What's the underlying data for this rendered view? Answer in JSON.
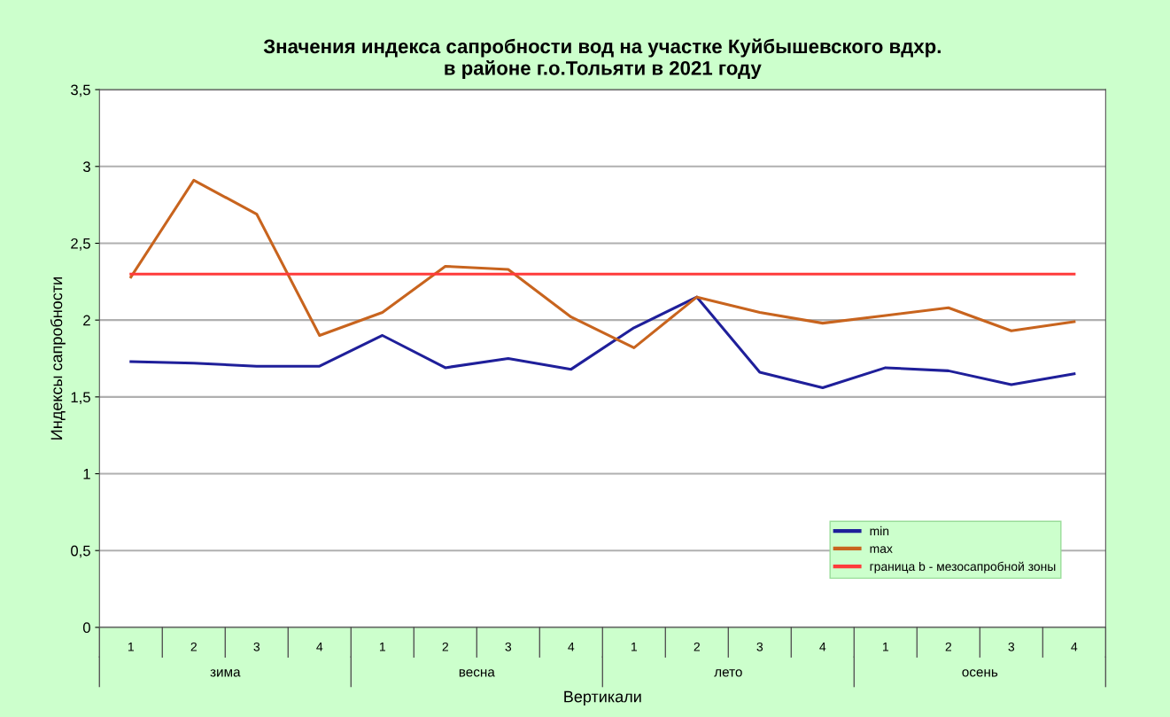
{
  "chart_data": {
    "type": "line",
    "title": "Значения индекса сапробности вод на участке Куйбышевского вдхр.\nв районе г.о.Тольяти в 2021 году",
    "xlabel": "Вертикали",
    "ylabel": "Индексы сапробности",
    "categories": [
      "1",
      "2",
      "3",
      "4",
      "1",
      "2",
      "3",
      "4",
      "1",
      "2",
      "3",
      "4",
      "1",
      "2",
      "3",
      "4"
    ],
    "annotations": [
      "зима",
      "весна",
      "лето",
      "осень"
    ],
    "series": [
      {
        "name": "min",
        "color": "#1f1f9a",
        "values": [
          1.73,
          1.72,
          1.7,
          1.7,
          1.9,
          1.69,
          1.75,
          1.68,
          1.95,
          2.15,
          1.66,
          1.56,
          1.69,
          1.67,
          1.58,
          1.65
        ]
      },
      {
        "name": "max",
        "color": "#c8641e",
        "values": [
          2.28,
          2.91,
          2.69,
          1.9,
          2.05,
          2.35,
          2.33,
          2.02,
          1.82,
          2.15,
          2.05,
          1.98,
          2.03,
          2.08,
          1.93,
          1.99
        ]
      },
      {
        "name": "граница b - мезосапробной зоны",
        "color": "#ff3b3b",
        "values": [
          2.3,
          2.3,
          2.3,
          2.3,
          2.3,
          2.3,
          2.3,
          2.3,
          2.3,
          2.3,
          2.3,
          2.3,
          2.3,
          2.3,
          2.3,
          2.3
        ]
      }
    ],
    "ylim": [
      0,
      3.5
    ],
    "yticks": [
      0,
      {
        "value": 0.5,
        "label": "0,5"
      },
      1,
      {
        "value": 1.5,
        "label": "1,5"
      },
      2,
      {
        "value": 2.5,
        "label": "2,5"
      },
      3,
      {
        "value": 3.5,
        "label": "3,5"
      }
    ],
    "grid": "y",
    "legend": "bottom right",
    "marker": "none",
    "line_style": "solid"
  }
}
